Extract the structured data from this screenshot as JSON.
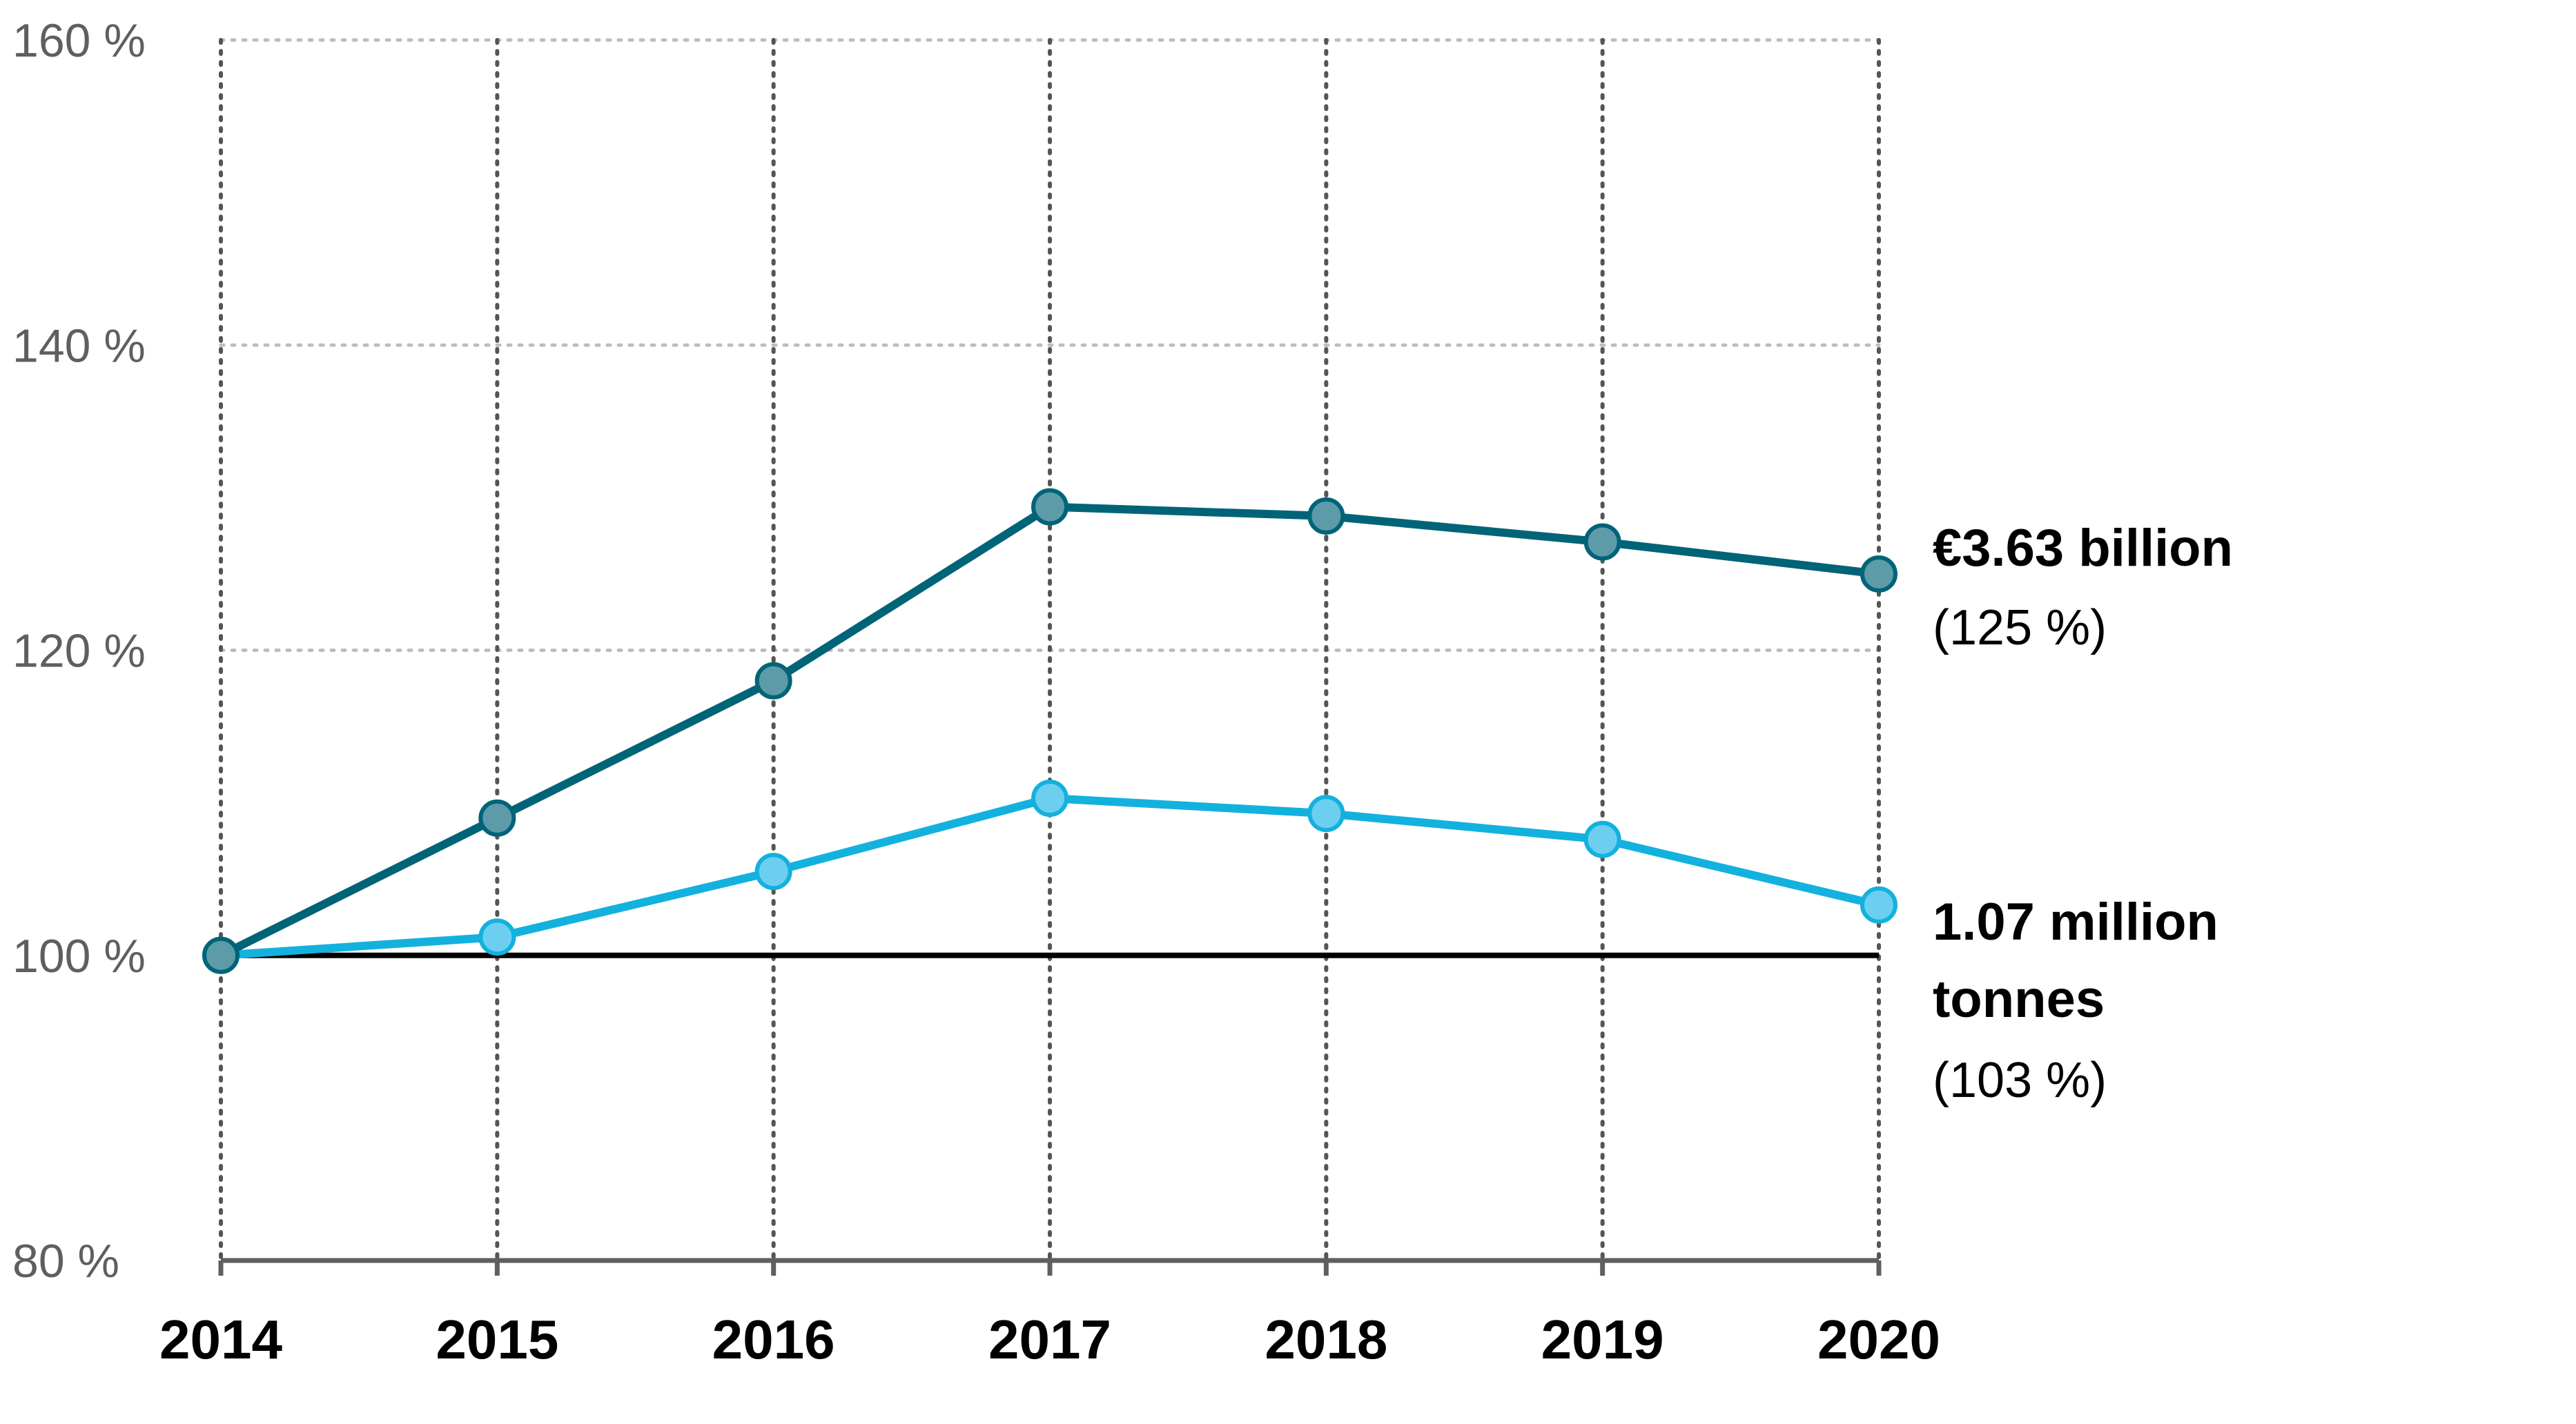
{
  "chart_data": {
    "type": "line",
    "categories": [
      "2014",
      "2015",
      "2016",
      "2017",
      "2018",
      "2019",
      "2020"
    ],
    "y_tick_labels": [
      "80 %",
      "100 %",
      "120 %",
      "140 %",
      "160 %"
    ],
    "y_ticks": [
      80,
      100,
      120,
      140,
      160
    ],
    "ylim": [
      80,
      160
    ],
    "baseline": 100,
    "grid": true,
    "series": [
      {
        "key": "value",
        "values": [
          100,
          109,
          118,
          129.4,
          128.8,
          127.1,
          125
        ],
        "line_color": "#006478",
        "marker_fill": "#5e9ba8",
        "end_label_lines": [
          "€3.63 billion"
        ],
        "end_label_pct": "(125 %)"
      },
      {
        "key": "volume",
        "values": [
          100,
          101.2,
          105.5,
          110.3,
          109.3,
          107.6,
          103.3
        ],
        "line_color": "#13b1de",
        "marker_fill": "#6dcff0",
        "end_label_lines": [
          "1.07 million",
          "tonnes"
        ],
        "end_label_pct": "(103 %)"
      }
    ]
  }
}
